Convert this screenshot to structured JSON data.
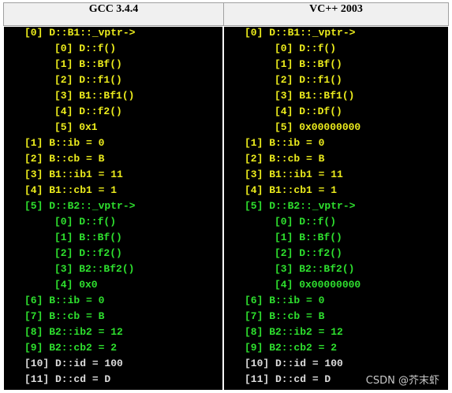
{
  "table": {
    "headers": [
      "GCC 3.4.4",
      "VC++ 2003"
    ],
    "rows": [
      {
        "color": "#ecec1c",
        "cells": [
          "[0] D::B1::_vptr->",
          "[0] D::B1::_vptr->"
        ],
        "entries": [
          [
            "[0] D::f()",
            "[0] D::f()"
          ],
          [
            "[1] B::Bf()",
            "[1] B::Bf()"
          ],
          [
            "[2] D::f1()",
            "[2] D::f1()"
          ],
          [
            "[3] B1::Bf1()",
            "[3] B1::Bf1()"
          ],
          [
            "[4] D::f2()",
            "[4] D::Df()"
          ],
          [
            "[5] 0x1",
            "[5] 0x00000000"
          ]
        ]
      },
      {
        "color": "#ecec1c",
        "cells": [
          "[1] B::ib = 0",
          "[1] B::ib = 0"
        ]
      },
      {
        "color": "#ecec1c",
        "cells": [
          "[2] B::cb = B",
          "[2] B::cb = B"
        ]
      },
      {
        "color": "#ecec1c",
        "cells": [
          "[3] B1::ib1 = 11",
          "[3] B1::ib1 = 11"
        ]
      },
      {
        "color": "#ecec1c",
        "cells": [
          "[4] B1::cb1 = 1",
          "[4] B1::cb1 = 1"
        ]
      },
      {
        "color": "#2ee02e",
        "cells": [
          "[5] D::B2::_vptr->",
          "[5] D::B2::_vptr->"
        ],
        "entries": [
          [
            "[0] D::f()",
            "[0] D::f()"
          ],
          [
            "[1] B::Bf()",
            "[1] B::Bf()"
          ],
          [
            "[2] D::f2()",
            "[2] D::f2()"
          ],
          [
            "[3] B2::Bf2()",
            "[3] B2::Bf2()"
          ],
          [
            "[4] 0x0",
            "[4] 0x00000000"
          ]
        ]
      },
      {
        "color": "#2ee02e",
        "cells": [
          "[6] B::ib = 0",
          "[6] B::ib = 0"
        ]
      },
      {
        "color": "#2ee02e",
        "cells": [
          "[7] B::cb = B",
          "[7] B::cb = B"
        ]
      },
      {
        "color": "#2ee02e",
        "cells": [
          "[8] B2::ib2 = 12",
          "[8] B2::ib2 = 12"
        ]
      },
      {
        "color": "#2ee02e",
        "cells": [
          "[9] B2::cb2 = 2",
          "[9] B2::cb2 = 2"
        ]
      },
      {
        "color": "#dcdcdc",
        "cells": [
          "[10] D::id = 100",
          "[10] D::id = 100"
        ]
      },
      {
        "color": "#dcdcdc",
        "cells": [
          "[11] D::cd = D",
          "[11] D::cd = D"
        ]
      }
    ]
  },
  "watermark": "CSDN @芥末虾"
}
